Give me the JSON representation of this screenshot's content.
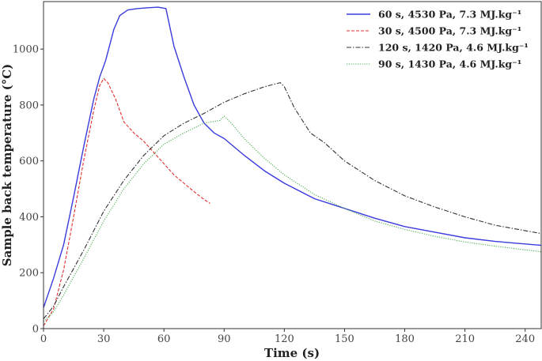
{
  "chart_data": {
    "type": "line",
    "title": "",
    "xlabel": "Time (s)",
    "ylabel": "Sample back temperature (°C)",
    "xlim": [
      0,
      248
    ],
    "ylim": [
      0,
      1170
    ],
    "x_ticks": [
      0,
      30,
      60,
      90,
      120,
      150,
      180,
      210,
      240
    ],
    "y_ticks": [
      0,
      200,
      400,
      600,
      800,
      1000
    ],
    "grid": false,
    "legend_position": "upper right",
    "series": [
      {
        "name": "60 s, 4530 Pa, 7.3 MJ.kg⁻¹",
        "color": "#3b3bdd",
        "style": "solid",
        "x": [
          0,
          5,
          10,
          15,
          20,
          25,
          28,
          31,
          35,
          38,
          42,
          47,
          52,
          57,
          61,
          65,
          70,
          75,
          80,
          85,
          90,
          100,
          110,
          120,
          135,
          150,
          165,
          180,
          195,
          210,
          225,
          248
        ],
        "y": [
          75,
          180,
          300,
          470,
          650,
          820,
          900,
          960,
          1070,
          1120,
          1140,
          1145,
          1148,
          1150,
          1145,
          1010,
          900,
          800,
          735,
          700,
          680,
          620,
          565,
          520,
          465,
          430,
          395,
          365,
          345,
          325,
          312,
          298
        ]
      },
      {
        "name": "30 s, 4500 Pa, 7.3 MJ.kg⁻¹",
        "color": "#e03030",
        "style": "dashed",
        "x": [
          0,
          5,
          10,
          15,
          20,
          25,
          28,
          30,
          32,
          36,
          40,
          45,
          50,
          55,
          60,
          65,
          70,
          75,
          80,
          83
        ],
        "y": [
          10,
          70,
          210,
          400,
          600,
          780,
          870,
          895,
          880,
          820,
          740,
          700,
          670,
          630,
          590,
          550,
          520,
          490,
          462,
          448
        ]
      },
      {
        "name": "120 s, 1420 Pa, 4.6 MJ.kg⁻¹",
        "color": "#333333",
        "style": "dashdot",
        "x": [
          0,
          5,
          10,
          20,
          30,
          40,
          50,
          60,
          70,
          80,
          90,
          100,
          110,
          118,
          120,
          125,
          133,
          140,
          150,
          165,
          180,
          195,
          210,
          225,
          248
        ],
        "y": [
          35,
          80,
          150,
          280,
          420,
          530,
          620,
          690,
          735,
          770,
          810,
          840,
          865,
          880,
          865,
          790,
          700,
          665,
          600,
          530,
          475,
          435,
          400,
          370,
          340
        ]
      },
      {
        "name": "90 s, 1430 Pa, 4.6 MJ.kg⁻¹",
        "color": "#4caf50",
        "style": "dotted",
        "x": [
          0,
          5,
          10,
          20,
          30,
          40,
          50,
          60,
          70,
          80,
          88,
          90,
          93,
          100,
          110,
          120,
          135,
          150,
          165,
          180,
          195,
          210,
          225,
          248
        ],
        "y": [
          25,
          60,
          120,
          250,
          385,
          500,
          590,
          660,
          700,
          735,
          745,
          760,
          740,
          680,
          610,
          550,
          480,
          430,
          385,
          355,
          330,
          310,
          295,
          275
        ]
      }
    ]
  }
}
